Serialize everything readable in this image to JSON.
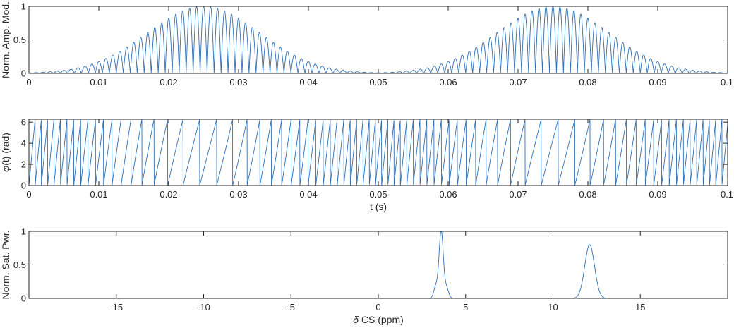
{
  "colors": {
    "series": "#2f6fb5",
    "axes": "#262626",
    "background": "#ffffff"
  },
  "chart_data": [
    {
      "type": "line",
      "xlabel": "",
      "ylabel": "Norm. Amp. Mod.",
      "xlim": [
        0,
        0.1
      ],
      "ylim": [
        0,
        1
      ],
      "xticks": [
        0,
        0.01,
        0.02,
        0.03,
        0.04,
        0.05,
        0.06,
        0.07,
        0.08,
        0.09,
        0.1
      ],
      "xtick_labels": [
        "0",
        "0.01",
        "0.02",
        "0.03",
        "0.04",
        "0.05",
        "0.06",
        "0.07",
        "0.08",
        "0.09",
        "0.1"
      ],
      "yticks": [
        0,
        0.5,
        1
      ],
      "ytick_labels": [
        "0",
        "0.5",
        "1"
      ],
      "grid": false,
      "description_of_signal": {
        "pulses": [
          {
            "start": 0.0,
            "end": 0.05,
            "peak": 1.0
          },
          {
            "start": 0.05,
            "end": 0.1,
            "peak": 1.0
          }
        ],
        "envelope": "Gaussian-like, rectified oscillation",
        "oscillation_period": 0.001
      }
    },
    {
      "type": "line",
      "xlabel": "t (s)",
      "ylabel": "φ(t) (rad)",
      "xlim": [
        0,
        0.1
      ],
      "ylim": [
        0,
        6.28
      ],
      "xticks": [
        0,
        0.01,
        0.02,
        0.03,
        0.04,
        0.05,
        0.06,
        0.07,
        0.08,
        0.09,
        0.1
      ],
      "xtick_labels": [
        "0",
        "0.01",
        "0.02",
        "0.03",
        "0.04",
        "0.05",
        "0.06",
        "0.07",
        "0.08",
        "0.09",
        "0.1"
      ],
      "yticks": [
        0,
        2,
        4,
        6
      ],
      "ytick_labels": [
        "0",
        "2",
        "4",
        "6"
      ],
      "grid": false,
      "description_of_signal": {
        "wrap": 6.2832,
        "phase_period": 0.0013,
        "sawtooth": true
      }
    },
    {
      "type": "line",
      "xlabel": "δ CS (ppm)",
      "ylabel": "Norm. Sat. Pwr.",
      "xlim": [
        -20,
        20
      ],
      "ylim": [
        0,
        1
      ],
      "xticks": [
        -15,
        -10,
        -5,
        0,
        5,
        10,
        15
      ],
      "xtick_labels": [
        "-15",
        "-10",
        "-5",
        "0",
        "5",
        "10",
        "15"
      ],
      "yticks": [
        0,
        0.5,
        1
      ],
      "ytick_labels": [
        "0",
        "0.5",
        "1"
      ],
      "grid": false,
      "peaks": [
        {
          "center": 3.6,
          "height": 1.0,
          "width": 0.12
        },
        {
          "center": 3.3,
          "height": 0.18,
          "width": 0.12
        },
        {
          "center": 3.9,
          "height": 0.16,
          "width": 0.12
        },
        {
          "center": 12.1,
          "height": 0.8,
          "width": 0.28
        }
      ]
    }
  ]
}
